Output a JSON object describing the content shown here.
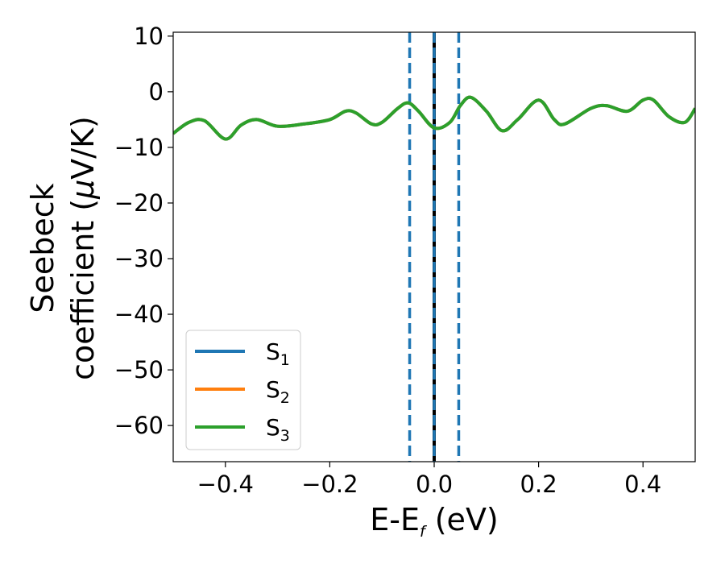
{
  "chart_data": {
    "type": "line",
    "title": "",
    "xlabel": "E-E",
    "xlabel_sub": "f",
    "xlabel_unit": " (eV)",
    "ylabel_line1": "Seebeck",
    "ylabel_line2_text": "coefficient  (",
    "ylabel_mu": "μ",
    "ylabel_line2_unit": "V/K)",
    "xlim": [
      -0.5,
      0.5
    ],
    "ylim": [
      -66.5,
      10.7
    ],
    "xticks": [
      -0.4,
      -0.2,
      0.0,
      0.2,
      0.4
    ],
    "xtick_labels": [
      "−0.4",
      "−0.2",
      "0.0",
      "0.2",
      "0.4"
    ],
    "yticks": [
      10,
      0,
      -10,
      -20,
      -30,
      -40,
      -50,
      -60
    ],
    "ytick_labels": [
      "10",
      "0",
      "−10",
      "−20",
      "−30",
      "−40",
      "−50",
      "−60"
    ],
    "grid": false,
    "legend_position": "lower-left",
    "vertical_lines": [
      {
        "x": 0.0,
        "color": "#000000",
        "style": "solid"
      },
      {
        "x": -0.047,
        "color": "#1f77b4",
        "style": "dashed"
      },
      {
        "x": 0.0,
        "color": "#1f77b4",
        "style": "dashed"
      },
      {
        "x": 0.047,
        "color": "#1f77b4",
        "style": "dashed"
      }
    ],
    "x": [
      -0.5,
      -0.47,
      -0.44,
      -0.4,
      -0.37,
      -0.34,
      -0.3,
      -0.25,
      -0.2,
      -0.17,
      -0.15,
      -0.12,
      -0.1,
      -0.07,
      -0.05,
      -0.03,
      0.0,
      0.03,
      0.05,
      0.07,
      0.1,
      0.13,
      0.16,
      0.2,
      0.23,
      0.25,
      0.3,
      0.33,
      0.37,
      0.4,
      0.42,
      0.45,
      0.48,
      0.5
    ],
    "series": [
      {
        "name_base": "S",
        "name_sub": "1",
        "color": "#1f77b4",
        "values": [
          -7.5,
          -5.5,
          -5.2,
          -8.5,
          -6.0,
          -5.0,
          -6.2,
          -5.8,
          -5.0,
          -3.5,
          -3.8,
          -5.8,
          -5.5,
          -3.0,
          -2.0,
          -3.5,
          -6.5,
          -5.5,
          -2.5,
          -1.0,
          -3.5,
          -7.0,
          -5.0,
          -1.5,
          -5.0,
          -5.8,
          -3.0,
          -2.5,
          -3.5,
          -1.5,
          -1.5,
          -4.5,
          -5.5,
          -3.0
        ]
      },
      {
        "name_base": "S",
        "name_sub": "2",
        "color": "#ff7f0e",
        "values": [
          -7.5,
          -5.5,
          -5.2,
          -8.5,
          -6.0,
          -5.0,
          -6.2,
          -5.8,
          -5.0,
          -3.5,
          -3.8,
          -5.8,
          -5.5,
          -3.0,
          -2.0,
          -3.5,
          -6.5,
          -5.5,
          -2.5,
          -1.0,
          -3.5,
          -7.0,
          -5.0,
          -1.5,
          -5.0,
          -5.8,
          -3.0,
          -2.5,
          -3.5,
          -1.5,
          -1.5,
          -4.5,
          -5.5,
          -3.0
        ]
      },
      {
        "name_base": "S",
        "name_sub": "3",
        "color": "#2ca02c",
        "values": [
          -7.5,
          -5.5,
          -5.2,
          -8.5,
          -6.0,
          -5.0,
          -6.2,
          -5.8,
          -5.0,
          -3.5,
          -3.8,
          -5.8,
          -5.5,
          -3.0,
          -2.0,
          -3.5,
          -6.5,
          -5.5,
          -2.5,
          -1.0,
          -3.5,
          -7.0,
          -5.0,
          -1.5,
          -5.0,
          -5.8,
          -3.0,
          -2.5,
          -3.5,
          -1.5,
          -1.5,
          -4.5,
          -5.5,
          -3.0
        ]
      }
    ]
  }
}
